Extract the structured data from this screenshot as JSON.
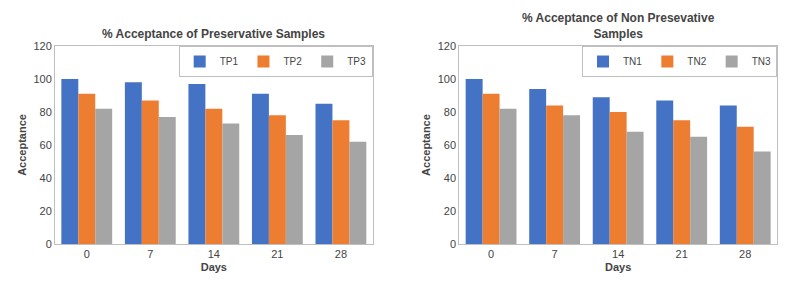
{
  "chart_data": [
    {
      "type": "bar",
      "title": "% Acceptance of Preservative Samples",
      "xlabel": "Days",
      "ylabel": "Acceptance",
      "categories": [
        "0",
        "7",
        "14",
        "21",
        "28"
      ],
      "series": [
        {
          "name": "TP1",
          "color": "#4472C4",
          "values": [
            100,
            98,
            97,
            91,
            85
          ]
        },
        {
          "name": "TP2",
          "color": "#ED7D31",
          "values": [
            91,
            87,
            82,
            78,
            75
          ]
        },
        {
          "name": "TP3",
          "color": "#A5A5A5",
          "values": [
            82,
            77,
            73,
            66,
            62
          ]
        }
      ],
      "ylim": [
        0,
        120
      ],
      "yticks": [
        0,
        20,
        40,
        60,
        80,
        100,
        120
      ],
      "grid": false,
      "legend": "upper right"
    },
    {
      "type": "bar",
      "title": "% Acceptance of Non Presevative\nSamples",
      "xlabel": "Days",
      "ylabel": "Acceptance",
      "categories": [
        "0",
        "7",
        "14",
        "21",
        "28"
      ],
      "series": [
        {
          "name": "TN1",
          "color": "#4472C4",
          "values": [
            100,
            94,
            89,
            87,
            84
          ]
        },
        {
          "name": "TN2",
          "color": "#ED7D31",
          "values": [
            91,
            84,
            80,
            75,
            71
          ]
        },
        {
          "name": "TN3",
          "color": "#A5A5A5",
          "values": [
            82,
            78,
            68,
            65,
            56
          ]
        }
      ],
      "ylim": [
        0,
        120
      ],
      "yticks": [
        0,
        20,
        40,
        60,
        80,
        100,
        120
      ],
      "grid": false,
      "legend": "upper right"
    }
  ]
}
